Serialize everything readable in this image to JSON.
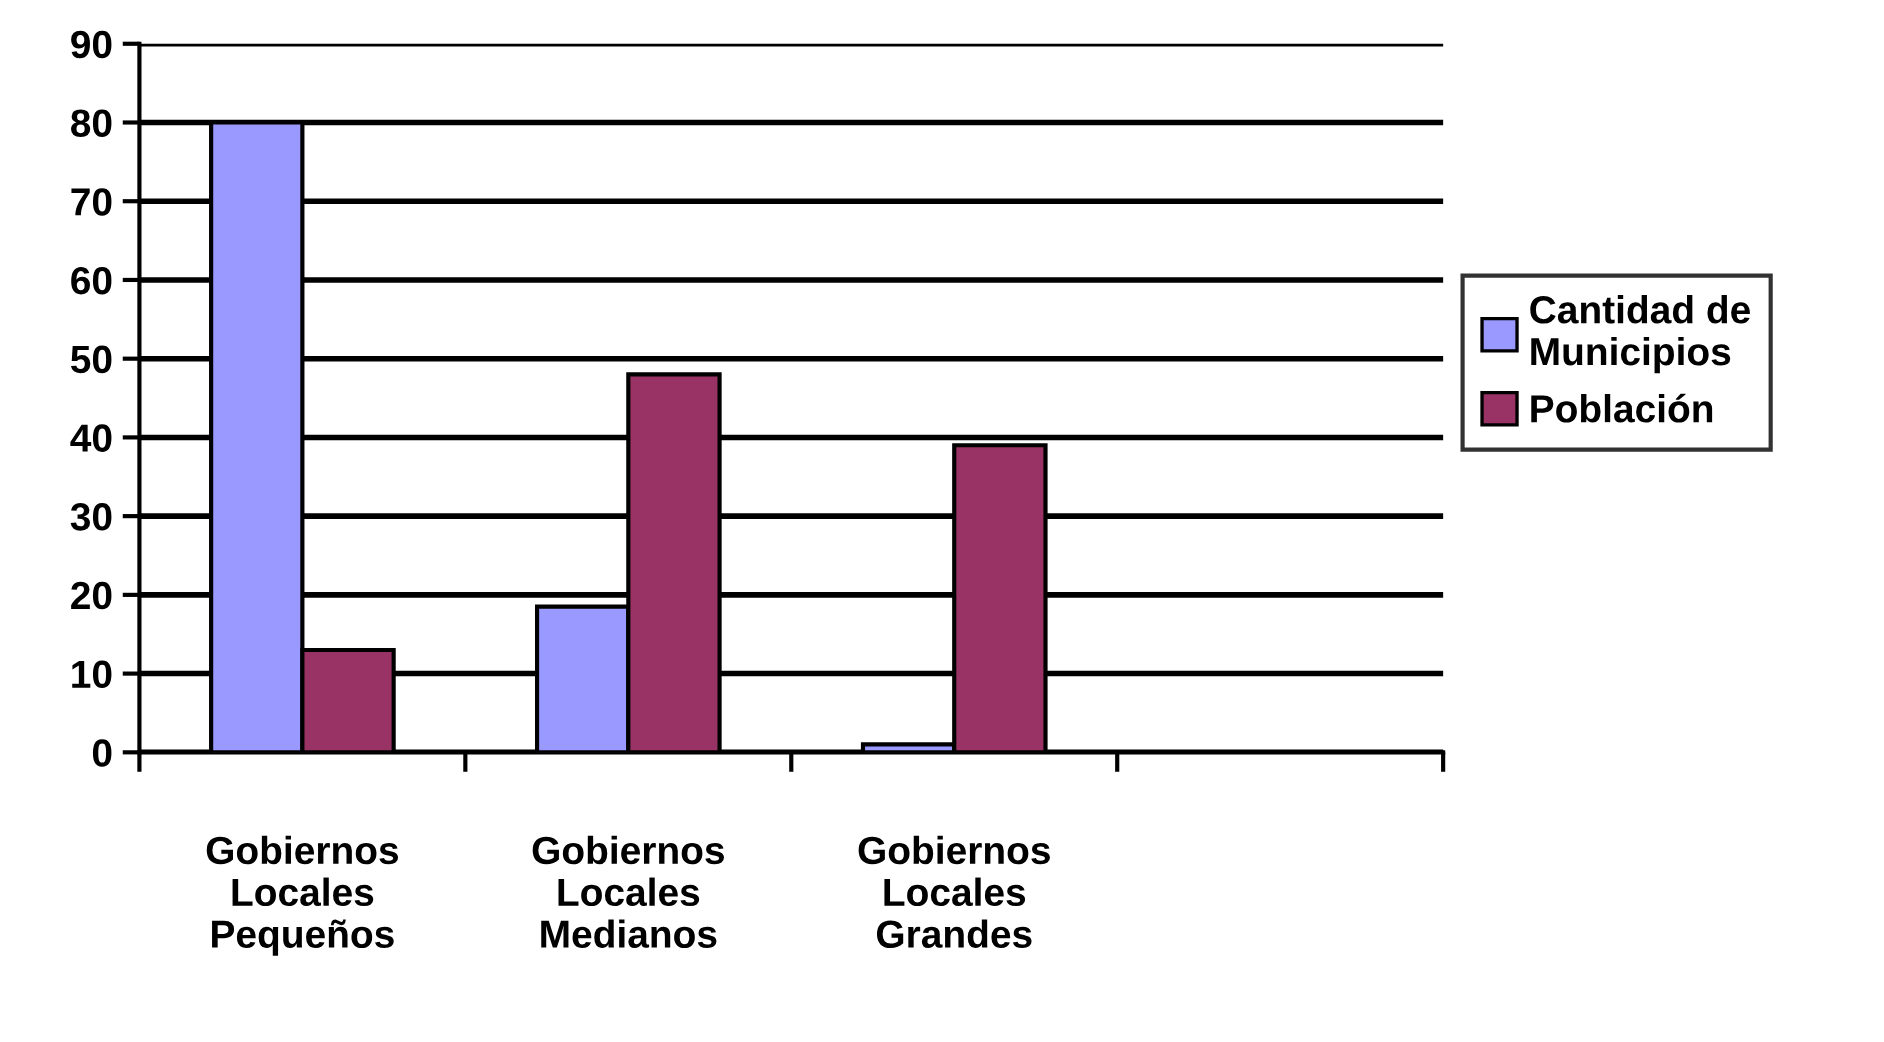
{
  "chart_data": {
    "type": "bar",
    "categories": [
      "Gobiernos\nLocales\nPequeños",
      "Gobiernos\nLocales\nMedianos",
      "Gobiernos\nLocales\nGrandes",
      null
    ],
    "series": [
      {
        "name": "Cantidad de\nMunicipios",
        "color": "#9999ff",
        "values": [
          80,
          18.5,
          1,
          null
        ]
      },
      {
        "name": "Población",
        "color": "#993366",
        "values": [
          13,
          48,
          39,
          null
        ]
      }
    ],
    "ylim": [
      0,
      90
    ],
    "yticks": [
      0,
      10,
      20,
      30,
      40,
      50,
      60,
      70,
      80,
      90
    ],
    "grid": "y",
    "legend": "right"
  }
}
